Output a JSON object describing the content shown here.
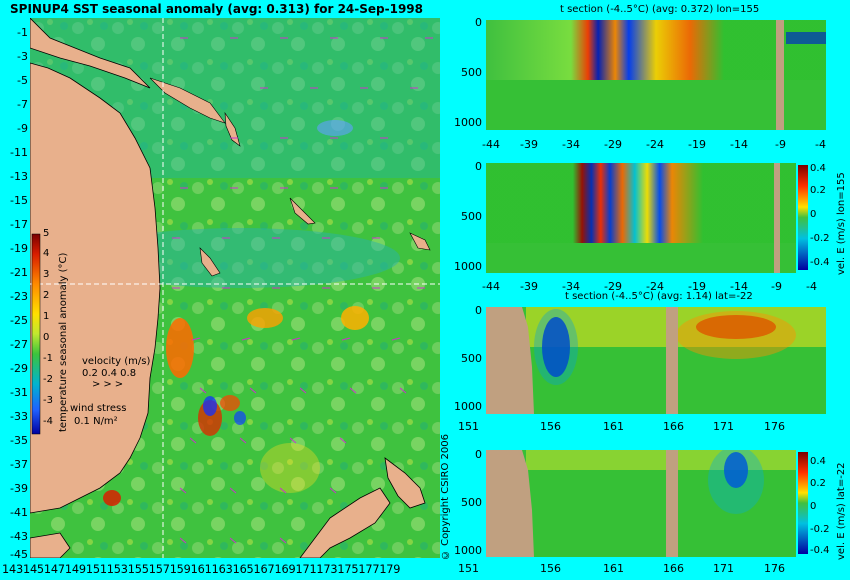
{
  "title": "SPINUP4 SST seasonal anomaly (avg: 0.313) for 24-Sep-1998",
  "map": {
    "lat_labels": [
      "-1",
      "-3",
      "-5",
      "-7",
      "-9",
      "-11",
      "-13",
      "-15",
      "-17",
      "-19",
      "-21",
      "-23",
      "-25",
      "-27",
      "-29",
      "-31",
      "-33",
      "-35",
      "-37",
      "-39",
      "-41",
      "-43",
      "-45"
    ],
    "lon_labels": "14314514714915115315515715916116316516716917117317517717",
    "lon_last": "9",
    "colorbar_ticks": [
      "5",
      "4",
      "3",
      "2",
      "1",
      "0",
      "-1",
      "-2",
      "-3",
      "-4"
    ],
    "colorbar_label": "temperature seasonal anomaly (°C)",
    "velocity_label": "velocity (m/s)",
    "velocity_scale": "0.2 0.4 0.8",
    "wind_label": "wind stress",
    "wind_scale": "0.1 N/m²",
    "copyright": "© Copyright CSIRO 2006"
  },
  "sections": [
    {
      "title": "t section (-4..5°C) (avg: 0.372) lon=155",
      "y_ticks": [
        "0",
        "500",
        "1000"
      ],
      "x_ticks": [
        "-44",
        "-39",
        "-34",
        "-29",
        "-24",
        "-19",
        "-14",
        "-9",
        "-4"
      ]
    },
    {
      "title": "",
      "y_ticks": [
        "0",
        "500",
        "1000"
      ],
      "x_ticks": [
        "-44",
        "-39",
        "-34",
        "-29",
        "-24",
        "-19",
        "-14",
        "-9",
        "-4"
      ],
      "cb_ticks": [
        "0.4",
        "0.2",
        "0",
        "-0.2",
        "-0.4"
      ],
      "cb_label": "vel. E (m/s) lon=155"
    },
    {
      "title": "t section (-4..5°C) (avg: 1.14) lat=-22",
      "y_ticks": [
        "0",
        "500",
        "1000"
      ],
      "x_ticks": [
        "151",
        "156",
        "161",
        "166",
        "171",
        "176"
      ]
    },
    {
      "title": "",
      "y_ticks": [
        "0",
        "500",
        "1000"
      ],
      "x_ticks": [
        "151",
        "156",
        "161",
        "166",
        "171",
        "176"
      ],
      "cb_ticks": [
        "0.4",
        "0.2",
        "0",
        "-0.2",
        "-0.4"
      ],
      "cb_label": "vel. E (m/s) lat=-22"
    }
  ],
  "colors": {
    "background": "#00ffff",
    "land": "#e8b08c",
    "ocean_base": "#33c633",
    "vector_arrows": "#cc33cc"
  }
}
